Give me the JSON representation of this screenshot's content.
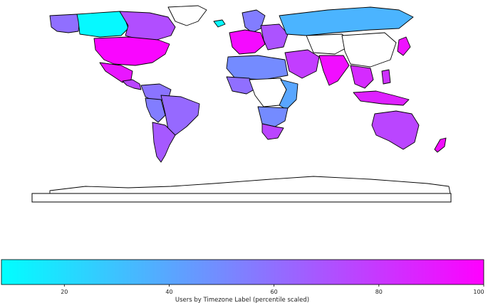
{
  "colormap": {
    "start": "#00ffff",
    "end": "#ff00ff"
  },
  "no_data_color": "#ffffff",
  "colorbar": {
    "label": "Users by Timezone Label (percentile scaled)",
    "range": [
      8,
      100
    ],
    "ticks": [
      20,
      40,
      60,
      80,
      100
    ]
  },
  "regions": [
    {
      "name": "alaska",
      "value": 60
    },
    {
      "name": "canada-west",
      "value": 10
    },
    {
      "name": "canada-east",
      "value": 72
    },
    {
      "name": "greenland",
      "value": null
    },
    {
      "name": "usa",
      "value": 98
    },
    {
      "name": "mexico",
      "value": 92
    },
    {
      "name": "central-america",
      "value": 75
    },
    {
      "name": "colombia-venezuela",
      "value": 58
    },
    {
      "name": "brazil",
      "value": 62
    },
    {
      "name": "peru",
      "value": 55
    },
    {
      "name": "argentina-chile",
      "value": 68
    },
    {
      "name": "iceland",
      "value": 10
    },
    {
      "name": "scandinavia",
      "value": 55
    },
    {
      "name": "western-europe",
      "value": 96
    },
    {
      "name": "eastern-europe",
      "value": 70
    },
    {
      "name": "russia",
      "value": 35
    },
    {
      "name": "north-africa",
      "value": 50
    },
    {
      "name": "west-africa",
      "value": 60
    },
    {
      "name": "central-africa",
      "value": null
    },
    {
      "name": "east-africa",
      "value": 40
    },
    {
      "name": "southern-africa",
      "value": 50
    },
    {
      "name": "south-africa",
      "value": 75
    },
    {
      "name": "middle-east",
      "value": 78
    },
    {
      "name": "central-asia",
      "value": null
    },
    {
      "name": "india",
      "value": 95
    },
    {
      "name": "china",
      "value": null
    },
    {
      "name": "southeast-asia",
      "value": 85
    },
    {
      "name": "indonesia",
      "value": 88
    },
    {
      "name": "philippines",
      "value": 82
    },
    {
      "name": "japan",
      "value": 94
    },
    {
      "name": "australia",
      "value": 75
    },
    {
      "name": "new-zealand",
      "value": 95
    },
    {
      "name": "antarctica",
      "value": null
    }
  ]
}
